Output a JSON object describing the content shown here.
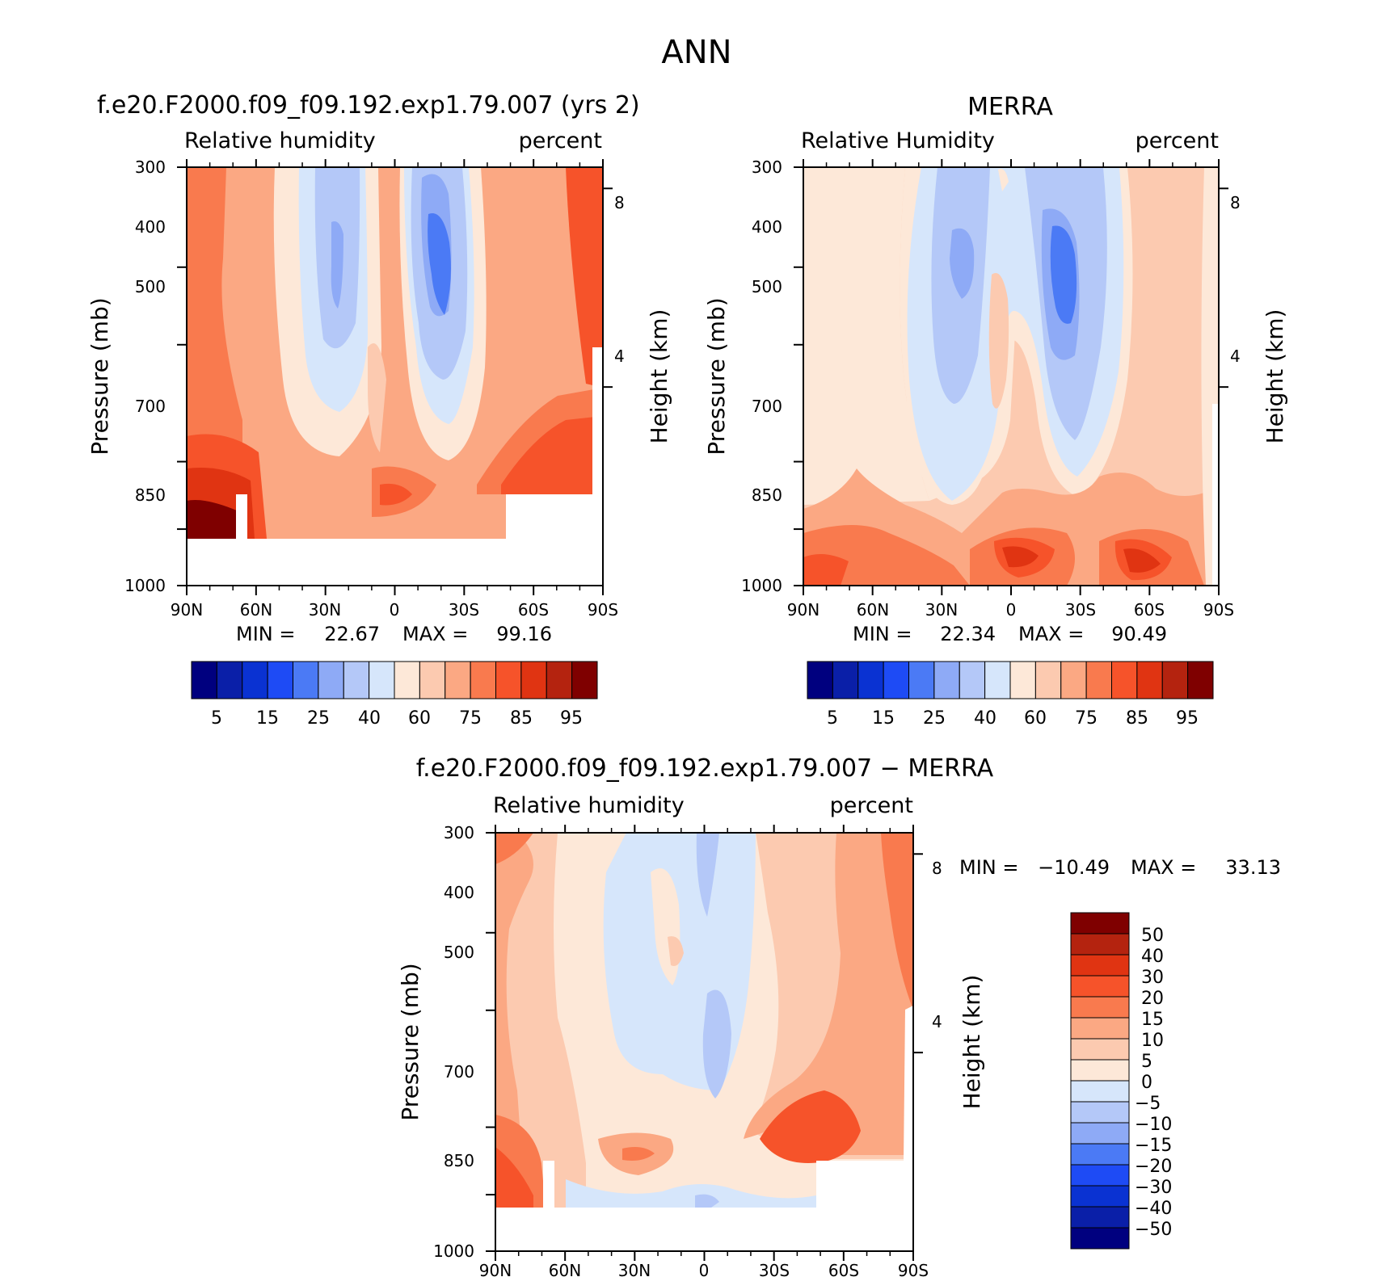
{
  "figure_title": "ANN",
  "chart_data": [
    {
      "type": "heatmap",
      "id": "model",
      "title": "f.e20.F2000.f09_f09.192.exp1.79.007 (yrs 2)",
      "left_string": "Relative humidity",
      "right_string": "percent",
      "ylabel": "Pressure (mb)",
      "ylabel_right": "Height (km)",
      "x_ticks": [
        "90N",
        "60N",
        "30N",
        "0",
        "30S",
        "60S",
        "90S"
      ],
      "x_values": [
        90,
        60,
        30,
        0,
        -30,
        -60,
        -90
      ],
      "y_ticks": [
        "300",
        "400",
        "500",
        "700",
        "850",
        "1000"
      ],
      "y_values": [
        300,
        400,
        500,
        700,
        850,
        1000
      ],
      "ylim": [
        1000,
        300
      ],
      "height_ticks": [
        "8",
        "4"
      ],
      "height_values": [
        8,
        4
      ],
      "min_label": "MIN =",
      "min_value": "22.67",
      "max_label": "MAX =",
      "max_value": "99.16",
      "min": 22.67,
      "max": 99.16,
      "colorbar_labels": [
        "5",
        "15",
        "25",
        "40",
        "60",
        "75",
        "85",
        "95"
      ]
    },
    {
      "type": "heatmap",
      "id": "obs",
      "title": "MERRA",
      "left_string": "Relative Humidity",
      "right_string": "percent",
      "ylabel": "Pressure (mb)",
      "ylabel_right": "Height (km)",
      "x_ticks": [
        "90N",
        "60N",
        "30N",
        "0",
        "30S",
        "60S",
        "90S"
      ],
      "x_values": [
        90,
        60,
        30,
        0,
        -30,
        -60,
        -90
      ],
      "y_ticks": [
        "300",
        "400",
        "500",
        "700",
        "850",
        "1000"
      ],
      "y_values": [
        300,
        400,
        500,
        700,
        850,
        1000
      ],
      "ylim": [
        1000,
        300
      ],
      "height_ticks": [
        "8",
        "4"
      ],
      "height_values": [
        8,
        4
      ],
      "min_label": "MIN =",
      "min_value": "22.34",
      "max_label": "MAX =",
      "max_value": "90.49",
      "min": 22.34,
      "max": 90.49,
      "colorbar_labels": [
        "5",
        "15",
        "25",
        "40",
        "60",
        "75",
        "85",
        "95"
      ]
    },
    {
      "type": "heatmap",
      "id": "diff",
      "title": "f.e20.F2000.f09_f09.192.exp1.79.007 − MERRA",
      "left_string": "Relative humidity",
      "right_string": "percent",
      "ylabel": "Pressure (mb)",
      "ylabel_right": "Height (km)",
      "x_ticks": [
        "90N",
        "60N",
        "30N",
        "0",
        "30S",
        "60S",
        "90S"
      ],
      "x_values": [
        90,
        60,
        30,
        0,
        -30,
        -60,
        -90
      ],
      "y_ticks": [
        "300",
        "400",
        "500",
        "700",
        "850",
        "1000"
      ],
      "y_values": [
        300,
        400,
        500,
        700,
        850,
        1000
      ],
      "ylim": [
        1000,
        300
      ],
      "height_ticks": [
        "8",
        "4"
      ],
      "height_values": [
        8,
        4
      ],
      "min_label": "MIN =",
      "min_value": "−10.49",
      "max_label": "MAX =",
      "max_value": "33.13",
      "min": -10.49,
      "max": 33.13,
      "colorbar_labels": [
        "50",
        "40",
        "30",
        "20",
        "15",
        "10",
        "5",
        "0",
        "−5",
        "−10",
        "−15",
        "−20",
        "−30",
        "−40",
        "−50"
      ]
    }
  ],
  "colors": {
    "abs_scale": [
      "#00007f",
      "#0a1fa8",
      "#0a32d2",
      "#1e4bf5",
      "#4b7af5",
      "#8eaaf6",
      "#b4c8f8",
      "#d6e6fb",
      "#fde8d8",
      "#fccab0",
      "#fba883",
      "#f97a4e",
      "#f6532a",
      "#e03412",
      "#b4230f",
      "#7f0000"
    ],
    "diff_scale": [
      "#00007f",
      "#0a1fa8",
      "#0a32d2",
      "#1e4bf5",
      "#4b7af5",
      "#8eaaf6",
      "#b4c8f8",
      "#d6e6fb",
      "#fde8d8",
      "#fccab0",
      "#fba883",
      "#f97a4e",
      "#f6532a",
      "#e03412",
      "#b4230f",
      "#7f0000"
    ]
  }
}
